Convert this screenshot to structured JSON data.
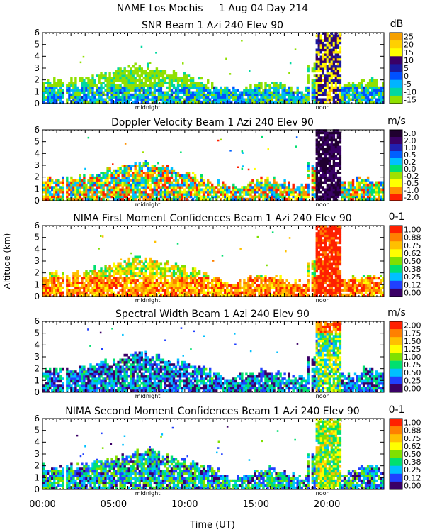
{
  "header": {
    "line1": "NAME Los Mochis     1 Aug 04 Day 214"
  },
  "axes": {
    "ylabel": "Altitude (km)",
    "xlabel": "Time (UT)",
    "x_ticks": [
      "00:00",
      "05:00",
      "10:00",
      "15:00",
      "20:00"
    ],
    "x_range": [
      0,
      24
    ],
    "y_range": [
      0,
      6
    ],
    "y_ticks": [
      "0",
      "1",
      "2",
      "3",
      "4",
      "5",
      "6"
    ],
    "markers": [
      "midnight",
      "noon"
    ]
  },
  "chart_data": [
    {
      "type": "heatmap",
      "title": "SNR Beam 1 Azi 240 Elev 90",
      "unit": "dB",
      "colorbar_labels": [
        "25",
        "20",
        "15",
        "10",
        "5",
        "0",
        "-5",
        "-10",
        "-15"
      ],
      "colors": [
        "#f5a000",
        "#ffd000",
        "#ffff00",
        "#3a0066",
        "#1a1aa0",
        "#0050ff",
        "#00b4ff",
        "#00d8a0",
        "#90e000"
      ],
      "profile": "snr"
    },
    {
      "type": "heatmap",
      "title": "Doppler Velocity Beam 1 Azi 240 Elev 90",
      "unit": "m/s",
      "colorbar_labels": [
        "5.0",
        "2.0",
        "1.0",
        "0.5",
        "0.2",
        "0.0",
        "-0.2",
        "-0.5",
        "-1.0",
        "-2.0"
      ],
      "colors": [
        "#200030",
        "#3a0066",
        "#2020b0",
        "#0060ff",
        "#00c0ff",
        "#00e070",
        "#a0e000",
        "#ffff00",
        "#ff9000",
        "#ff2000"
      ],
      "profile": "doppler"
    },
    {
      "type": "heatmap",
      "title": "NIMA First Moment Confidences Beam 1 Azi 240 Elev 90",
      "unit": "0-1",
      "colorbar_labels": [
        "1.00",
        "0.88",
        "0.75",
        "0.62",
        "0.50",
        "0.38",
        "0.25",
        "0.12",
        "0.00"
      ],
      "colors": [
        "#ff2000",
        "#ff8000",
        "#ffc000",
        "#ffff00",
        "#80e000",
        "#00e070",
        "#00c0ff",
        "#2040ff",
        "#3a0066"
      ],
      "profile": "conf1"
    },
    {
      "type": "heatmap",
      "title": "Spectral Width Beam 1 Azi 240 Elev 90",
      "unit": "m/s",
      "colorbar_labels": [
        "2.00",
        "1.75",
        "1.50",
        "1.25",
        "1.00",
        "0.75",
        "0.50",
        "0.25",
        "0.00"
      ],
      "colors": [
        "#ff2000",
        "#ff8000",
        "#ffc000",
        "#ffff00",
        "#80e000",
        "#00e070",
        "#00c0ff",
        "#2040ff",
        "#3a0066"
      ],
      "profile": "width"
    },
    {
      "type": "heatmap",
      "title": "NIMA Second Moment Confidences Beam 1 Azi 240 Elev 90",
      "unit": "0-1",
      "colorbar_labels": [
        "1.00",
        "0.88",
        "0.75",
        "0.62",
        "0.50",
        "0.38",
        "0.25",
        "0.12",
        "0.00"
      ],
      "colors": [
        "#ff2000",
        "#ff8000",
        "#ffc000",
        "#ffff00",
        "#80e000",
        "#00e070",
        "#00c0ff",
        "#2040ff",
        "#3a0066"
      ],
      "profile": "conf2"
    }
  ]
}
